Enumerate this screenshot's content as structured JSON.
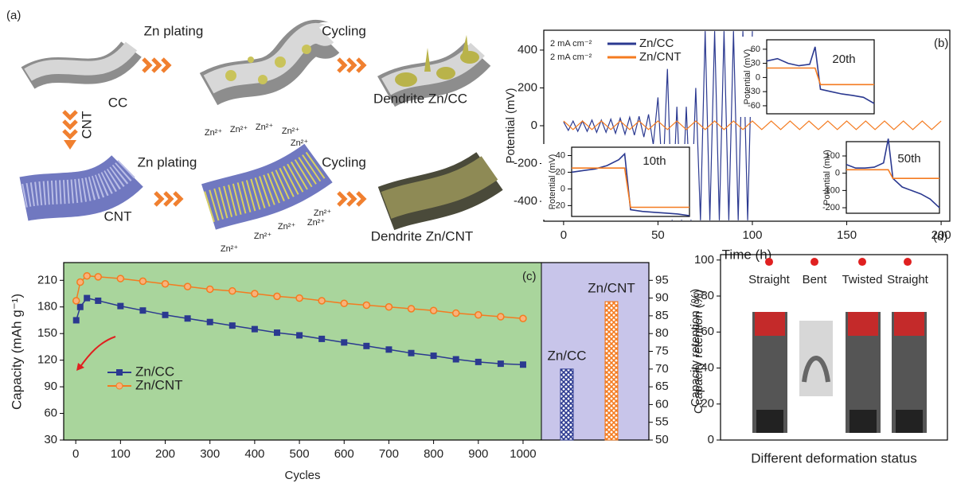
{
  "panel_a": {
    "label": "(a)",
    "top": {
      "plating": "Zn plating",
      "cycling": "Cycling",
      "start": "CC",
      "end": "Dendrite Zn/CC"
    },
    "treatment": "CNT",
    "bottom": {
      "plating": "Zn plating",
      "cycling": "Cycling",
      "start": "CNT",
      "end": "Dendrite Zn/CNT"
    },
    "ions": [
      "Zn²⁺",
      "Zn²⁺",
      "Zn²⁺",
      "Zn²⁺",
      "Zn²⁺",
      "Zn²⁺",
      "Zn²⁺",
      "Zn²⁺",
      "Zn²⁺",
      "Zn²⁺"
    ]
  },
  "chart_data": [
    {
      "type": "line",
      "panel_label": "(b)",
      "xlabel": "Time (h)",
      "ylabel": "Potential (mV)",
      "xlim": [
        -10.5,
        204.6
      ],
      "ylim": [
        -505,
        505
      ],
      "xticks": [
        0,
        50,
        100,
        150,
        200
      ],
      "yticks": [
        -400,
        -200,
        0,
        200,
        400
      ],
      "series": [
        {
          "name": "Zn/CC",
          "condition": "2 mA cm⁻²",
          "color": "#2b3990",
          "x": [
            0,
            2.5,
            5,
            7.5,
            10,
            12.5,
            15,
            17.5,
            20,
            22.5,
            25,
            27.5,
            30,
            32.5,
            35,
            37.5,
            40,
            42.5,
            45,
            47.5,
            50,
            52.5,
            55,
            57.5,
            60,
            62.5,
            65,
            67.5,
            70,
            72.5,
            75,
            77.5,
            80,
            82.5,
            85,
            87.5,
            90,
            92.5,
            95,
            97.5,
            100
          ],
          "values": [
            20,
            -25,
            25,
            -30,
            25,
            -30,
            30,
            -35,
            30,
            -35,
            35,
            -40,
            40,
            -45,
            45,
            -50,
            50,
            -60,
            60,
            -100,
            150,
            -300,
            300,
            -500,
            100,
            -500,
            100,
            -500,
            200,
            -500,
            500,
            -500,
            500,
            -500,
            500,
            -500,
            500,
            -500,
            500,
            -500,
            500
          ]
        },
        {
          "name": "Zn/CNT",
          "condition": "2 mA cm⁻²",
          "color": "#f47b20",
          "x": [
            0,
            5,
            10,
            15,
            20,
            25,
            30,
            35,
            40,
            45,
            50,
            55,
            60,
            65,
            70,
            75,
            80,
            85,
            90,
            95,
            100,
            105,
            110,
            115,
            120,
            125,
            130,
            135,
            140,
            145,
            150,
            155,
            160,
            165,
            170,
            175,
            180,
            185,
            190,
            195,
            200
          ],
          "values": [
            25,
            -20,
            25,
            -20,
            25,
            -20,
            25,
            -20,
            25,
            -20,
            25,
            -20,
            25,
            -20,
            25,
            -20,
            25,
            -20,
            25,
            -20,
            25,
            -20,
            25,
            -20,
            25,
            -20,
            25,
            -20,
            25,
            -20,
            25,
            -20,
            25,
            -20,
            25,
            -20,
            25,
            -20,
            25,
            -20,
            25
          ]
        }
      ]
    },
    {
      "type": "line",
      "title": "10th",
      "ylabel": "Potential (mV)",
      "xlim": [
        0,
        10
      ],
      "ylim": [
        -33,
        50
      ],
      "yticks": [
        -20,
        0,
        20,
        40
      ],
      "series": [
        {
          "color": "#2b3990",
          "x": [
            0,
            1,
            2,
            3,
            4,
            4.5,
            5,
            6,
            7,
            8,
            9,
            10
          ],
          "values": [
            20,
            22,
            24,
            28,
            35,
            42,
            -25,
            -27,
            -28,
            -29,
            -30,
            -32
          ]
        },
        {
          "color": "#f47b20",
          "x": [
            0,
            1,
            2,
            3,
            4,
            4.5,
            5,
            6,
            7,
            8,
            9,
            10
          ],
          "values": [
            25,
            25,
            25,
            25,
            25,
            25,
            -22,
            -22,
            -22,
            -22,
            -22,
            -22
          ]
        }
      ]
    },
    {
      "type": "line",
      "title": "20th",
      "ylabel": "Potential (mV)",
      "xlim": [
        0,
        10
      ],
      "ylim": [
        -77,
        80
      ],
      "yticks": [
        -60,
        -30,
        0,
        30,
        60
      ],
      "series": [
        {
          "color": "#2b3990",
          "x": [
            0,
            1,
            2,
            3,
            4,
            4.5,
            5,
            6,
            7,
            8,
            9,
            10
          ],
          "values": [
            35,
            40,
            30,
            25,
            28,
            65,
            -25,
            -30,
            -35,
            -38,
            -42,
            -55
          ]
        },
        {
          "color": "#f47b20",
          "x": [
            0,
            1,
            2,
            3,
            4,
            4.5,
            5,
            6,
            7,
            8,
            9,
            10
          ],
          "values": [
            20,
            20,
            20,
            20,
            20,
            20,
            -15,
            -15,
            -15,
            -15,
            -15,
            -15
          ]
        }
      ]
    },
    {
      "type": "line",
      "title": "50th",
      "ylabel": "Potential (mV)",
      "xlim": [
        0,
        10
      ],
      "ylim": [
        -232,
        183
      ],
      "yticks": [
        -200,
        -100,
        0,
        100
      ],
      "series": [
        {
          "color": "#2b3990",
          "x": [
            0,
            1,
            2,
            3,
            4,
            4.5,
            5,
            6,
            7,
            8,
            9,
            10
          ],
          "values": [
            50,
            30,
            30,
            35,
            60,
            200,
            -30,
            -80,
            -100,
            -120,
            -150,
            -200
          ]
        },
        {
          "color": "#f47b20",
          "x": [
            0,
            1,
            2,
            3,
            4,
            4.5,
            5,
            6,
            7,
            8,
            9,
            10
          ],
          "values": [
            20,
            20,
            20,
            20,
            20,
            20,
            -30,
            -30,
            -30,
            -30,
            -30,
            -30
          ]
        }
      ]
    },
    {
      "type": "combo",
      "panel_label": "(c)",
      "xlabel": "Cycles",
      "ylabel": "Capacity (mAh g⁻¹)",
      "y2label": "Ccapacity retention (%)",
      "xlim": [
        -27,
        1041
      ],
      "ylim": [
        30,
        230
      ],
      "y2lim": [
        50,
        100
      ],
      "xticks": [
        0,
        100,
        200,
        300,
        400,
        500,
        600,
        700,
        800,
        900,
        1000
      ],
      "yticks": [
        30,
        60,
        90,
        120,
        150,
        180,
        210
      ],
      "y2ticks": [
        50,
        55,
        60,
        65,
        70,
        75,
        80,
        85,
        90,
        95
      ],
      "series": [
        {
          "name": "Zn/CC",
          "color": "#2b3990",
          "marker": "square",
          "x": [
            1,
            10,
            25,
            50,
            100,
            150,
            200,
            250,
            300,
            350,
            400,
            450,
            500,
            550,
            600,
            650,
            700,
            750,
            800,
            850,
            900,
            950,
            1000
          ],
          "values": [
            165,
            180,
            190,
            187,
            181,
            176,
            171,
            167,
            163,
            159,
            155,
            151,
            148,
            144,
            140,
            136,
            132,
            128,
            125,
            121,
            118,
            116,
            115
          ]
        },
        {
          "name": "Zn/CNT",
          "color": "#f47b20",
          "marker": "circle",
          "x": [
            1,
            10,
            25,
            50,
            100,
            150,
            200,
            250,
            300,
            350,
            400,
            450,
            500,
            550,
            600,
            650,
            700,
            750,
            800,
            850,
            900,
            950,
            1000
          ],
          "values": [
            187,
            208,
            215,
            214,
            212,
            209,
            206,
            203,
            200,
            198,
            195,
            192,
            190,
            187,
            184,
            182,
            180,
            178,
            176,
            173,
            171,
            169,
            167
          ]
        }
      ],
      "bars": {
        "axis": "y2",
        "categories": [
          "Zn/CC",
          "Zn/CNT"
        ],
        "values": [
          70,
          89
        ],
        "colors": [
          "#2b3990",
          "#f47b20"
        ]
      }
    },
    {
      "type": "scatter",
      "panel_label": "(d)",
      "xlabel": "Different deformation status",
      "ylabel": "Capacity retention (%)",
      "ylim": [
        0,
        103
      ],
      "yticks": [
        0,
        20,
        40,
        60,
        80,
        100
      ],
      "color": "#e02020",
      "categories": [
        "Straight",
        "Bent",
        "Twisted",
        "Straight"
      ],
      "values": [
        99,
        99,
        99,
        99
      ]
    }
  ]
}
